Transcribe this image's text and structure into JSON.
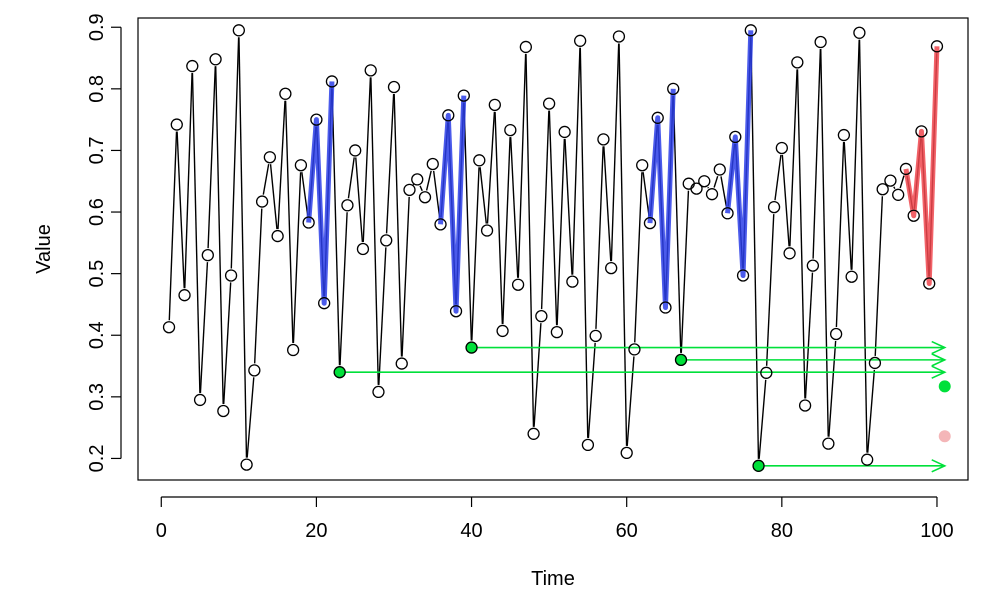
{
  "chart_data": {
    "type": "line",
    "title": "",
    "xlabel": "Time",
    "ylabel": "Value",
    "xlim": [
      -3,
      104
    ],
    "ylim": [
      0.165,
      0.915
    ],
    "x_ticks": [
      0,
      20,
      40,
      60,
      80,
      100
    ],
    "y_ticks": [
      0.2,
      0.3,
      0.4,
      0.5,
      0.6,
      0.7,
      0.8,
      0.9
    ],
    "x_tick_labels": [
      "0",
      "20",
      "40",
      "60",
      "80",
      "100"
    ],
    "y_tick_labels": [
      "0.2",
      "0.3",
      "0.4",
      "0.5",
      "0.6",
      "0.7",
      "0.8",
      "0.9"
    ],
    "grid": false,
    "legend": "none",
    "series": [
      {
        "style": "points-and-lines",
        "color": "#000000",
        "x": [
          1,
          2,
          3,
          4,
          5,
          6,
          7,
          8,
          9,
          10,
          11,
          12,
          13,
          14,
          15,
          16,
          17,
          18,
          19,
          20,
          21,
          22,
          23,
          24,
          25,
          26,
          27,
          28,
          29,
          30,
          31,
          32,
          33,
          34,
          35,
          36,
          37,
          38,
          39,
          40,
          41,
          42,
          43,
          44,
          45,
          46,
          47,
          48,
          49,
          50,
          51,
          52,
          53,
          54,
          55,
          56,
          57,
          58,
          59,
          60,
          61,
          62,
          63,
          64,
          65,
          66,
          67,
          68,
          69,
          70,
          71,
          72,
          73,
          74,
          75,
          76,
          77,
          78,
          79,
          80,
          81,
          82,
          83,
          84,
          85,
          86,
          87,
          88,
          89,
          90,
          91,
          92,
          93,
          94,
          95,
          96,
          97,
          98,
          99,
          100
        ],
        "y": [
          0.413,
          0.742,
          0.465,
          0.837,
          0.295,
          0.53,
          0.848,
          0.277,
          0.497,
          0.895,
          0.19,
          0.343,
          0.617,
          0.689,
          0.561,
          0.792,
          0.376,
          0.676,
          0.583,
          0.75,
          0.452,
          0.812,
          0.34,
          0.611,
          0.7,
          0.54,
          0.83,
          0.308,
          0.554,
          0.803,
          0.354,
          0.636,
          0.653,
          0.624,
          0.678,
          0.58,
          0.757,
          0.439,
          0.789,
          0.38,
          0.684,
          0.57,
          0.774,
          0.407,
          0.733,
          0.482,
          0.868,
          0.24,
          0.431,
          0.776,
          0.405,
          0.73,
          0.487,
          0.878,
          0.222,
          0.399,
          0.718,
          0.509,
          0.885,
          0.209,
          0.377,
          0.676,
          0.582,
          0.753,
          0.445,
          0.8,
          0.36,
          0.646,
          0.638,
          0.65,
          0.629,
          0.669,
          0.598,
          0.722,
          0.497,
          0.895,
          0.188,
          0.339,
          0.608,
          0.704,
          0.533,
          0.843,
          0.286,
          0.513,
          0.876,
          0.224,
          0.402,
          0.725,
          0.495,
          0.891,
          0.198,
          0.355,
          0.637,
          0.651,
          0.628,
          0.67,
          0.594,
          0.731,
          0.484,
          0.869
        ]
      }
    ],
    "highlight_segments": [
      {
        "color": "#2b3ee8",
        "x": [
          19,
          22
        ]
      },
      {
        "color": "#2b3ee8",
        "x": [
          36,
          39
        ]
      },
      {
        "color": "#2b3ee8",
        "x": [
          63,
          66
        ]
      },
      {
        "color": "#2b3ee8",
        "x": [
          73,
          76
        ]
      },
      {
        "color": "#f0474d",
        "x": [
          96,
          100
        ]
      }
    ],
    "arrows": [
      {
        "color": "#00e03a",
        "x_start": 23,
        "y": 0.34,
        "x_end": 101
      },
      {
        "color": "#00e03a",
        "x_start": 40,
        "y": 0.38,
        "x_end": 101
      },
      {
        "color": "#00e03a",
        "x_start": 67,
        "y": 0.36,
        "x_end": 101
      },
      {
        "color": "#00e03a",
        "x_start": 77,
        "y": 0.188,
        "x_end": 101
      }
    ],
    "extra_points": [
      {
        "color": "#00e03a",
        "x": 101,
        "y": 0.317
      },
      {
        "color": "#f4b6b8",
        "x": 101,
        "y": 0.236
      }
    ]
  }
}
